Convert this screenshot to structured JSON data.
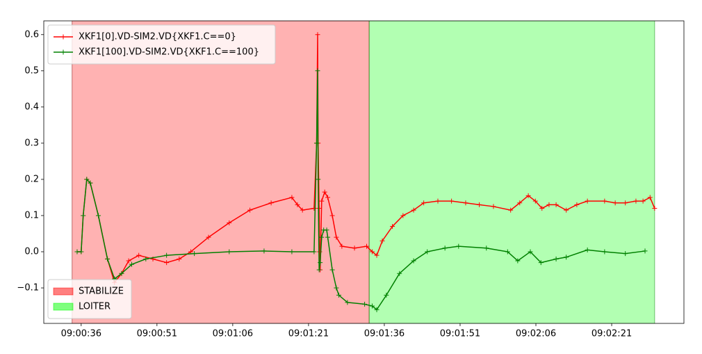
{
  "chart_data": {
    "type": "line",
    "x_format": "time",
    "xlim": [
      32428.6,
      32555.3
    ],
    "ylim": [
      -0.198,
      0.638
    ],
    "xticks": [
      {
        "value": 32436,
        "label": "09:00:36"
      },
      {
        "value": 32451,
        "label": "09:00:51"
      },
      {
        "value": 32466,
        "label": "09:01:06"
      },
      {
        "value": 32481,
        "label": "09:01:21"
      },
      {
        "value": 32496,
        "label": "09:01:36"
      },
      {
        "value": 32511,
        "label": "09:01:51"
      },
      {
        "value": 32526,
        "label": "09:02:06"
      },
      {
        "value": 32541,
        "label": "09:02:21"
      }
    ],
    "yticks": [
      {
        "value": -0.1,
        "label": "−0.1"
      },
      {
        "value": 0,
        "label": "0.0"
      },
      {
        "value": 0.1,
        "label": "0.1"
      },
      {
        "value": 0.2,
        "label": "0.2"
      },
      {
        "value": 0.3,
        "label": "0.3"
      },
      {
        "value": 0.4,
        "label": "0.4"
      },
      {
        "value": 0.5,
        "label": "0.5"
      },
      {
        "value": 0.6,
        "label": "0.6"
      }
    ],
    "legend": "upper left",
    "span_legend": "lower left",
    "spans": [
      {
        "name": "STABILIZE",
        "color": "#ff0000",
        "start": 32434.2,
        "end": 32493.0
      },
      {
        "name": "LOITER",
        "color": "#00ff00",
        "start": 32493.0,
        "end": 32549.5
      }
    ],
    "series": [
      {
        "name": "XKF1[0].VD-SIM2.VD{XKF1.C==0}",
        "color": "#ff0000",
        "x": [
          32435.2,
          32436.0,
          32436.4,
          32437.1,
          32437.8,
          32439.4,
          32441.2,
          32442.6,
          32444.0,
          32445.4,
          32447.4,
          32450.2,
          32452.9,
          32455.4,
          32457.7,
          32461.2,
          32465.3,
          32469.4,
          32473.6,
          32477.7,
          32478.8,
          32479.8,
          32482.1,
          32482.6,
          32482.8,
          32482.9,
          32483.1,
          32483.2,
          32483.3,
          32483.6,
          32484.2,
          32484.8,
          32485.7,
          32486.5,
          32487.6,
          32490.1,
          32492.5,
          32493.6,
          32494.5,
          32495.6,
          32497.6,
          32499.7,
          32501.8,
          32503.8,
          32506.6,
          32509.3,
          32512.1,
          32514.8,
          32517.6,
          32521.0,
          32522.8,
          32524.5,
          32525.9,
          32527.2,
          32528.6,
          32530.0,
          32532.0,
          32534.1,
          32536.2,
          32539.6,
          32541.7,
          32543.7,
          32545.8,
          32547.2,
          32548.6,
          32549.5
        ],
        "values": [
          0,
          0,
          0.1,
          0.2,
          0.19,
          0.1,
          -0.02,
          -0.085,
          -0.06,
          -0.025,
          -0.01,
          -0.02,
          -0.03,
          -0.02,
          0.0,
          0.04,
          0.08,
          0.115,
          0.135,
          0.15,
          0.13,
          0.115,
          0.12,
          0.3,
          0.6,
          0.3,
          0.12,
          0.0,
          -0.05,
          0.14,
          0.165,
          0.15,
          0.1,
          0.04,
          0.015,
          0.01,
          0.015,
          0.0,
          -0.01,
          0.03,
          0.07,
          0.1,
          0.115,
          0.135,
          0.14,
          0.14,
          0.135,
          0.13,
          0.125,
          0.115,
          0.135,
          0.155,
          0.14,
          0.12,
          0.13,
          0.13,
          0.115,
          0.13,
          0.14,
          0.14,
          0.135,
          0.135,
          0.14,
          0.14,
          0.15,
          0.12
        ]
      },
      {
        "name": "XKF1[100].VD-SIM2.VD{XKF1.C==100}",
        "color": "#008000",
        "x": [
          32435.2,
          32436.0,
          32436.4,
          32437.1,
          32437.8,
          32439.4,
          32441.2,
          32442.6,
          32444.0,
          32446.0,
          32448.8,
          32452.9,
          32458.4,
          32465.3,
          32472.2,
          32477.7,
          32482.1,
          32482.6,
          32482.8,
          32482.9,
          32483.1,
          32483.3,
          32483.6,
          32484.0,
          32484.6,
          32484.8,
          32485.7,
          32486.5,
          32487.0,
          32488.7,
          32492.1,
          32493.6,
          32494.5,
          32496.4,
          32499.0,
          32501.8,
          32504.5,
          32508.0,
          32510.7,
          32516.2,
          32520.4,
          32522.4,
          32524.9,
          32527.0,
          32530.0,
          32532.0,
          32536.2,
          32539.6,
          32543.7,
          32547.6
        ],
        "values": [
          0,
          0,
          0.1,
          0.2,
          0.19,
          0.1,
          -0.02,
          -0.075,
          -0.06,
          -0.035,
          -0.02,
          -0.01,
          -0.005,
          0,
          0.002,
          0,
          0,
          0.3,
          0.5,
          0.2,
          -0.05,
          -0.03,
          0.04,
          0.06,
          0.06,
          0.04,
          -0.05,
          -0.1,
          -0.12,
          -0.14,
          -0.145,
          -0.15,
          -0.16,
          -0.12,
          -0.06,
          -0.025,
          0.0,
          0.01,
          0.015,
          0.01,
          0,
          -0.025,
          0,
          -0.03,
          -0.02,
          -0.015,
          0.005,
          0,
          -0.005,
          0.002
        ]
      }
    ]
  }
}
